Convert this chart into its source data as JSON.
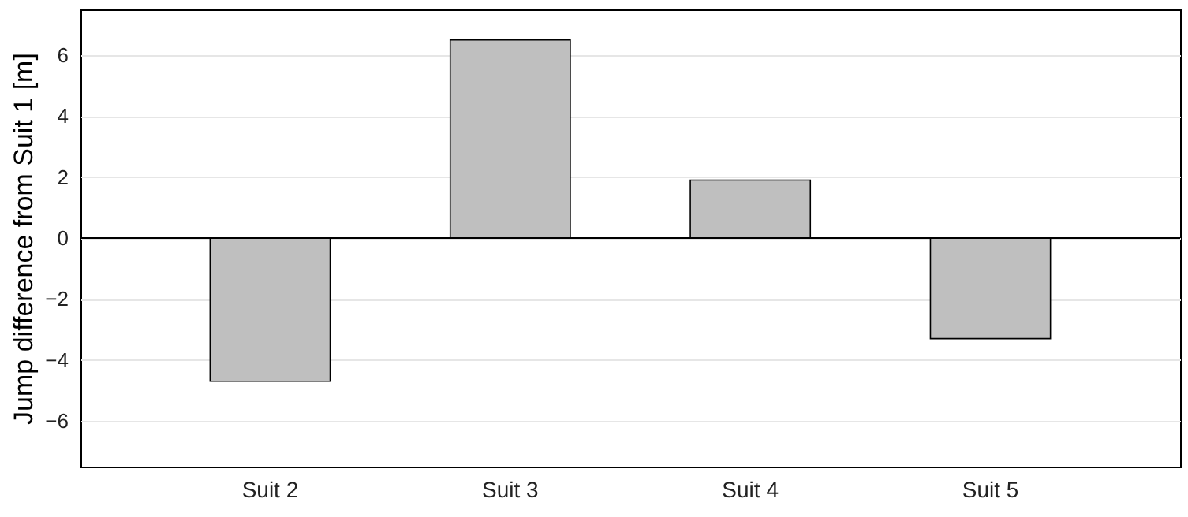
{
  "chart_data": {
    "type": "bar",
    "ylabel": "Jump difference from Suit 1 [m]",
    "categories": [
      "Suit 2",
      "Suit 3",
      "Suit 4",
      "Suit 5"
    ],
    "values": [
      -4.7,
      6.5,
      1.9,
      -3.3
    ],
    "color": "#bfbfbf",
    "ylim": [
      -7.5,
      7.5
    ],
    "yticks": [
      -6,
      -4,
      -2,
      0,
      2,
      4,
      6
    ],
    "grid": "y"
  }
}
